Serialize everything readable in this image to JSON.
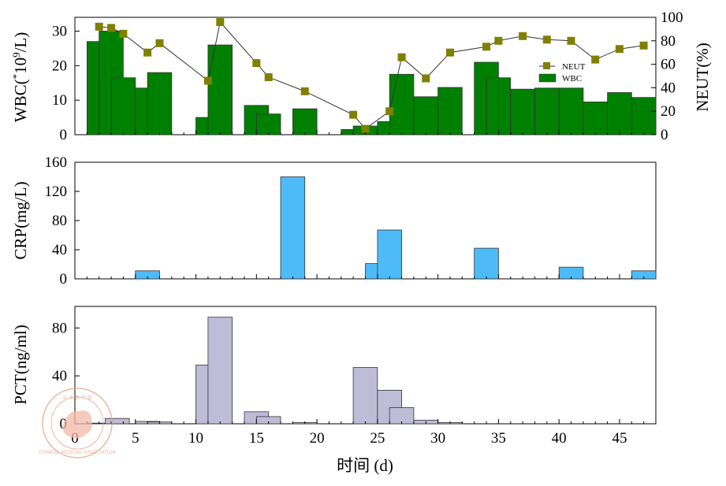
{
  "chart_data": [
    {
      "type": "bar",
      "panel": "wbc-neut",
      "xlim": [
        0,
        48
      ],
      "bar_width_days": 2,
      "ylabel_main": "WBC(",
      "ylabel_sup1": "*",
      "ylabel_mid": "10",
      "ylabel_sup2": "9",
      "ylabel_end": "/L)",
      "ylim": [
        0,
        34
      ],
      "yticks": [
        "0",
        "10",
        "20",
        "30"
      ],
      "ylabel_right": "NEUT(%)",
      "ylim_right": [
        0,
        100
      ],
      "yticks_right": [
        "0",
        "20",
        "40",
        "60",
        "80",
        "100"
      ],
      "legend": {
        "line_label": "NEUT",
        "bar_label": "WBC",
        "position": "top-right"
      },
      "colors": {
        "bar": "#008000",
        "line": "#333333",
        "marker": "#808000"
      },
      "series": [
        {
          "name": "WBC",
          "kind": "bar",
          "points": [
            {
              "x": 2,
              "y": 27
            },
            {
              "x": 3,
              "y": 30
            },
            {
              "x": 4,
              "y": 16.5
            },
            {
              "x": 6,
              "y": 13.5
            },
            {
              "x": 7,
              "y": 18
            },
            {
              "x": 11,
              "y": 5
            },
            {
              "x": 12,
              "y": 26
            },
            {
              "x": 15,
              "y": 8.5
            },
            {
              "x": 16,
              "y": 6
            },
            {
              "x": 19,
              "y": 7.5
            },
            {
              "x": 23,
              "y": 1.5
            },
            {
              "x": 24,
              "y": 2.5
            },
            {
              "x": 26,
              "y": 3.8
            },
            {
              "x": 27,
              "y": 17.5
            },
            {
              "x": 29,
              "y": 11
            },
            {
              "x": 31,
              "y": 13.7
            },
            {
              "x": 34,
              "y": 21
            },
            {
              "x": 35,
              "y": 16.5
            },
            {
              "x": 37,
              "y": 13.2
            },
            {
              "x": 39,
              "y": 13.5
            },
            {
              "x": 41,
              "y": 13.5
            },
            {
              "x": 43,
              "y": 9.5
            },
            {
              "x": 45,
              "y": 12.2
            },
            {
              "x": 47,
              "y": 10.8
            }
          ]
        },
        {
          "name": "NEUT",
          "kind": "line",
          "points": [
            {
              "x": 2,
              "y": 92
            },
            {
              "x": 3,
              "y": 91
            },
            {
              "x": 4,
              "y": 86
            },
            {
              "x": 6,
              "y": 70
            },
            {
              "x": 7,
              "y": 78
            },
            {
              "x": 11,
              "y": 46
            },
            {
              "x": 12,
              "y": 96
            },
            {
              "x": 15,
              "y": 61
            },
            {
              "x": 16,
              "y": 49
            },
            {
              "x": 19,
              "y": 37
            },
            {
              "x": 23,
              "y": 17
            },
            {
              "x": 24,
              "y": 5
            },
            {
              "x": 26,
              "y": 20
            },
            {
              "x": 27,
              "y": 66
            },
            {
              "x": 29,
              "y": 48
            },
            {
              "x": 31,
              "y": 70
            },
            {
              "x": 34,
              "y": 75
            },
            {
              "x": 35,
              "y": 80
            },
            {
              "x": 37,
              "y": 84
            },
            {
              "x": 39,
              "y": 81
            },
            {
              "x": 41,
              "y": 80
            },
            {
              "x": 43,
              "y": 64
            },
            {
              "x": 45,
              "y": 73
            },
            {
              "x": 47,
              "y": 76
            }
          ]
        }
      ]
    },
    {
      "type": "bar",
      "panel": "crp",
      "xlim": [
        0,
        48
      ],
      "bar_width_days": 2,
      "ylabel": "CRP(mg/L)",
      "ylim": [
        0,
        160
      ],
      "yticks": [
        "0",
        "40",
        "80",
        "120",
        "160"
      ],
      "colors": {
        "bar": "#4dbbf8"
      },
      "series": [
        {
          "name": "CRP",
          "kind": "bar",
          "points": [
            {
              "x": 6,
              "y": 11
            },
            {
              "x": 18,
              "y": 140
            },
            {
              "x": 25,
              "y": 21
            },
            {
              "x": 26,
              "y": 67
            },
            {
              "x": 34,
              "y": 42
            },
            {
              "x": 41,
              "y": 16
            },
            {
              "x": 47,
              "y": 11
            }
          ]
        }
      ]
    },
    {
      "type": "bar",
      "panel": "pct",
      "xlim": [
        0,
        48
      ],
      "bar_width_days": 2,
      "ylabel": "PCT(ng/ml)",
      "ylim": [
        0,
        98
      ],
      "yticks": [
        "0",
        "40",
        "80"
      ],
      "xticks": [
        "0",
        "5",
        "10",
        "15",
        "20",
        "25",
        "30",
        "35",
        "40",
        "45"
      ],
      "xlabel": "时间 (d)",
      "colors": {
        "bar": "#bfbcd8"
      },
      "series": [
        {
          "name": "PCT",
          "kind": "bar",
          "points": [
            {
              "x": 2,
              "y": 0.5
            },
            {
              "x": 3.5,
              "y": 4.5
            },
            {
              "x": 6,
              "y": 2
            },
            {
              "x": 7,
              "y": 1.5
            },
            {
              "x": 11,
              "y": 49
            },
            {
              "x": 12,
              "y": 89
            },
            {
              "x": 15,
              "y": 10
            },
            {
              "x": 16,
              "y": 6
            },
            {
              "x": 19,
              "y": 1
            },
            {
              "x": 24,
              "y": 47
            },
            {
              "x": 26,
              "y": 28
            },
            {
              "x": 27,
              "y": 13.5
            },
            {
              "x": 29,
              "y": 3
            },
            {
              "x": 31,
              "y": 1
            }
          ]
        }
      ]
    }
  ],
  "watermark": {
    "seal_text_top": "中 华 医 学 会",
    "seal_text_bottom": "CHINESE MEDICAL ASSOCIATION",
    "color": "#e6a08a"
  }
}
